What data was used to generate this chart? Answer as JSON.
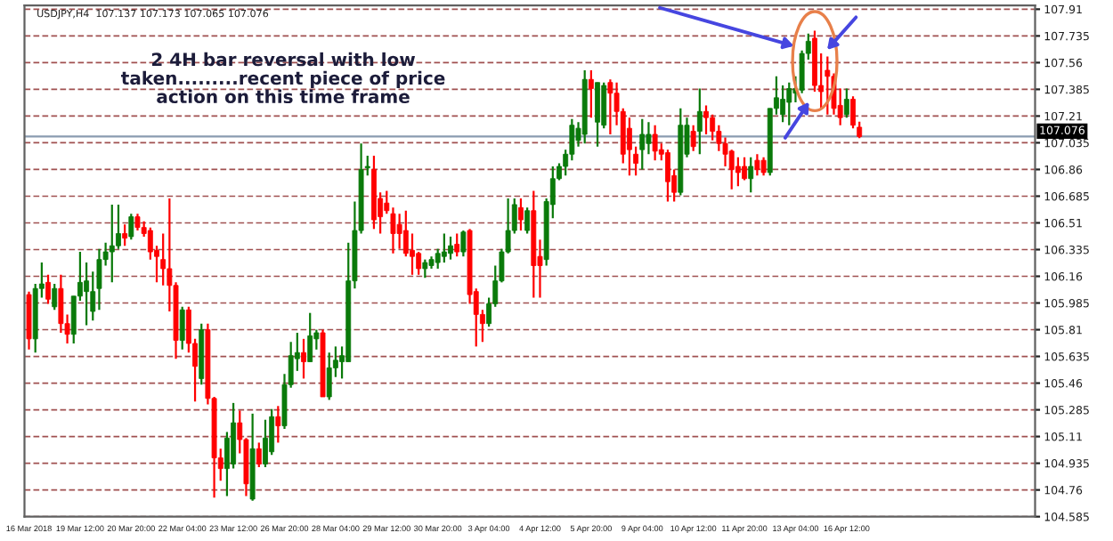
{
  "chart_data": {
    "type": "candlestick",
    "title": "USDJPY,H4  107.137 107.173 107.065 107.076",
    "annotations": [
      "2 4H bar reversal with low\ntaken.........recent piece of price\naction on this time frame"
    ],
    "categories": [
      "16 Mar 2018",
      null,
      null,
      null,
      null,
      null,
      null,
      null,
      "19 Mar 12:00",
      null,
      null,
      null,
      null,
      null,
      null,
      null,
      "20 Mar 20:00",
      null,
      null,
      null,
      null,
      null,
      null,
      null,
      "22 Mar 04:00",
      null,
      null,
      null,
      null,
      null,
      null,
      null,
      "23 Mar 12:00",
      null,
      null,
      null,
      null,
      null,
      null,
      null,
      "26 Mar 20:00",
      null,
      null,
      null,
      null,
      null,
      null,
      null,
      "28 Mar 04:00",
      null,
      null,
      null,
      null,
      null,
      null,
      null,
      "29 Mar 12:00",
      null,
      null,
      null,
      null,
      null,
      null,
      null,
      "30 Mar 20:00",
      null,
      null,
      null,
      null,
      null,
      null,
      null,
      "3 Apr 04:00",
      null,
      null,
      null,
      null,
      null,
      null,
      null,
      "4 Apr 12:00",
      null,
      null,
      null,
      null,
      null,
      null,
      null,
      "5 Apr 20:00",
      null,
      null,
      null,
      null,
      null,
      null,
      null,
      "9 Apr 04:00",
      null,
      null,
      null,
      null,
      null,
      null,
      null,
      "10 Apr 12:00",
      null,
      null,
      null,
      null,
      null,
      null,
      null,
      "11 Apr 20:00",
      null,
      null,
      null,
      null,
      null,
      null,
      null,
      "13 Apr 04:00",
      null,
      null,
      null,
      null,
      null,
      null,
      null,
      "16 Apr 12:00",
      null,
      null,
      null,
      null,
      null,
      null,
      null,
      null,
      null,
      null,
      null,
      null,
      null,
      null,
      null,
      null,
      null,
      null,
      null,
      null,
      null,
      null,
      null,
      null,
      null,
      null,
      null,
      null,
      null
    ],
    "ohlc": [
      [
        106.04,
        106.06,
        105.68,
        105.75
      ],
      [
        105.75,
        106.11,
        105.66,
        106.08
      ],
      [
        106.08,
        106.25,
        106.02,
        106.11
      ],
      [
        106.12,
        106.17,
        105.98,
        106.01
      ],
      [
        105.96,
        106.11,
        105.94,
        106.08
      ],
      [
        106.08,
        106.17,
        105.79,
        105.85
      ],
      [
        105.85,
        105.91,
        105.72,
        105.78
      ],
      [
        105.78,
        106.03,
        105.72,
        106.03
      ],
      [
        106.03,
        106.32,
        106.0,
        106.12
      ],
      [
        106.06,
        106.25,
        105.84,
        106.13
      ],
      [
        105.93,
        106.19,
        105.87,
        106.06
      ],
      [
        106.08,
        106.34,
        105.94,
        106.27
      ],
      [
        106.27,
        106.38,
        106.23,
        106.32
      ],
      [
        106.32,
        106.63,
        106.12,
        106.36
      ],
      [
        106.36,
        106.63,
        106.34,
        106.44
      ],
      [
        106.44,
        106.5,
        106.36,
        106.41
      ],
      [
        106.42,
        106.57,
        106.4,
        106.55
      ],
      [
        106.55,
        106.57,
        106.46,
        106.48
      ],
      [
        106.48,
        106.52,
        106.42,
        106.44
      ],
      [
        106.46,
        106.48,
        106.27,
        106.32
      ],
      [
        106.33,
        106.36,
        106.12,
        106.29
      ],
      [
        106.27,
        106.44,
        106.1,
        106.21
      ],
      [
        106.21,
        106.67,
        105.93,
        106.1
      ],
      [
        106.1,
        106.12,
        105.62,
        105.74
      ],
      [
        105.74,
        105.96,
        105.68,
        105.94
      ],
      [
        105.94,
        105.96,
        105.66,
        105.72
      ],
      [
        105.72,
        105.75,
        105.34,
        105.57
      ],
      [
        105.49,
        105.85,
        105.45,
        105.81
      ],
      [
        105.81,
        105.85,
        105.32,
        105.36
      ],
      [
        105.36,
        105.37,
        104.71,
        104.97
      ],
      [
        104.97,
        105.03,
        104.82,
        104.9
      ],
      [
        104.9,
        105.14,
        104.72,
        105.1
      ],
      [
        104.93,
        105.33,
        104.9,
        105.2
      ],
      [
        105.2,
        105.28,
        105.0,
        105.09
      ],
      [
        105.09,
        105.1,
        104.72,
        104.8
      ],
      [
        104.7,
        105.26,
        104.69,
        105.03
      ],
      [
        105.03,
        105.07,
        104.91,
        104.93
      ],
      [
        104.93,
        105.22,
        104.91,
        105.1
      ],
      [
        105.01,
        105.29,
        104.99,
        105.24
      ],
      [
        105.24,
        105.31,
        105.07,
        105.18
      ],
      [
        105.18,
        105.52,
        105.16,
        105.45
      ],
      [
        105.45,
        105.73,
        105.43,
        105.64
      ],
      [
        105.62,
        105.79,
        105.54,
        105.66
      ],
      [
        105.66,
        105.75,
        105.49,
        105.6
      ],
      [
        105.6,
        105.92,
        105.6,
        105.77
      ],
      [
        105.75,
        105.81,
        105.68,
        105.79
      ],
      [
        105.79,
        105.81,
        105.37,
        105.37
      ],
      [
        105.37,
        105.66,
        105.35,
        105.56
      ],
      [
        105.56,
        105.7,
        105.5,
        105.61
      ],
      [
        105.6,
        105.7,
        105.49,
        105.64
      ],
      [
        105.6,
        106.38,
        105.6,
        106.13
      ],
      [
        106.13,
        106.65,
        106.08,
        106.46
      ],
      [
        106.46,
        107.03,
        106.44,
        106.86
      ],
      [
        106.87,
        106.95,
        106.82,
        106.88
      ],
      [
        106.86,
        106.95,
        106.47,
        106.53
      ],
      [
        106.67,
        106.71,
        106.44,
        106.55
      ],
      [
        106.64,
        106.72,
        106.57,
        106.59
      ],
      [
        106.57,
        106.61,
        106.31,
        106.44
      ],
      [
        106.5,
        106.57,
        106.34,
        106.44
      ],
      [
        106.46,
        106.59,
        106.29,
        106.31
      ],
      [
        106.33,
        106.44,
        106.17,
        106.29
      ],
      [
        106.31,
        106.32,
        106.17,
        106.21
      ],
      [
        106.21,
        106.27,
        106.15,
        106.25
      ],
      [
        106.23,
        106.29,
        106.21,
        106.27
      ],
      [
        106.25,
        106.34,
        106.21,
        106.31
      ],
      [
        106.29,
        106.44,
        106.25,
        106.32
      ],
      [
        106.31,
        106.42,
        106.27,
        106.36
      ],
      [
        106.37,
        106.44,
        106.29,
        106.32
      ],
      [
        106.32,
        106.46,
        106.29,
        106.45
      ],
      [
        106.46,
        106.47,
        105.98,
        106.04
      ],
      [
        106.06,
        106.08,
        105.7,
        105.91
      ],
      [
        105.91,
        105.94,
        105.73,
        105.85
      ],
      [
        105.85,
        106.02,
        105.83,
        105.98
      ],
      [
        105.98,
        106.23,
        105.96,
        106.13
      ],
      [
        106.13,
        106.34,
        106.12,
        106.32
      ],
      [
        106.32,
        106.67,
        106.31,
        106.46
      ],
      [
        106.46,
        106.67,
        106.44,
        106.63
      ],
      [
        106.61,
        106.67,
        106.46,
        106.53
      ],
      [
        106.46,
        106.61,
        106.44,
        106.59
      ],
      [
        106.59,
        106.72,
        106.02,
        106.23
      ],
      [
        106.29,
        106.4,
        106.02,
        106.23
      ],
      [
        106.27,
        106.67,
        106.23,
        106.65
      ],
      [
        106.63,
        106.88,
        106.54,
        106.8
      ],
      [
        106.8,
        106.9,
        106.79,
        106.88
      ],
      [
        106.88,
        106.99,
        106.82,
        106.96
      ],
      [
        106.96,
        107.19,
        106.92,
        107.15
      ],
      [
        107.05,
        107.17,
        107.01,
        107.13
      ],
      [
        107.09,
        107.51,
        107.03,
        107.45
      ],
      [
        107.45,
        107.51,
        107.2,
        107.39
      ],
      [
        107.17,
        107.43,
        107.01,
        107.43
      ],
      [
        107.15,
        107.43,
        107.13,
        107.41
      ],
      [
        107.43,
        107.45,
        107.09,
        107.36
      ],
      [
        107.36,
        107.43,
        107.15,
        107.24
      ],
      [
        107.24,
        107.26,
        106.9,
        106.96
      ],
      [
        107.13,
        107.2,
        106.82,
        106.99
      ],
      [
        106.96,
        107.01,
        106.82,
        106.9
      ],
      [
        106.99,
        107.19,
        106.86,
        107.09
      ],
      [
        107.03,
        107.17,
        106.96,
        107.09
      ],
      [
        107.09,
        107.15,
        106.92,
        106.98
      ],
      [
        106.99,
        107.03,
        106.92,
        106.96
      ],
      [
        106.97,
        106.99,
        106.65,
        106.78
      ],
      [
        106.82,
        106.86,
        106.65,
        106.71
      ],
      [
        106.71,
        107.26,
        106.69,
        107.15
      ],
      [
        106.96,
        107.2,
        106.94,
        107.15
      ],
      [
        107.11,
        107.15,
        106.98,
        107.01
      ],
      [
        107.11,
        107.39,
        106.96,
        107.24
      ],
      [
        107.24,
        107.28,
        107.09,
        107.2
      ],
      [
        107.2,
        107.22,
        107.05,
        107.11
      ],
      [
        107.11,
        107.15,
        106.98,
        107.03
      ],
      [
        107.03,
        107.07,
        106.88,
        106.96
      ],
      [
        106.98,
        106.99,
        106.73,
        106.86
      ],
      [
        106.88,
        106.94,
        106.75,
        106.84
      ],
      [
        106.88,
        106.94,
        106.79,
        106.8
      ],
      [
        106.8,
        106.94,
        106.71,
        106.88
      ],
      [
        106.92,
        106.96,
        106.82,
        106.86
      ],
      [
        106.92,
        106.94,
        106.82,
        106.84
      ],
      [
        106.84,
        107.26,
        106.82,
        107.26
      ],
      [
        107.26,
        107.47,
        107.22,
        107.33
      ],
      [
        107.22,
        107.41,
        107.17,
        107.32
      ],
      [
        107.3,
        107.43,
        107.15,
        107.39
      ],
      [
        107.36,
        107.47,
        107.3,
        107.39
      ],
      [
        107.38,
        107.64,
        107.36,
        107.62
      ],
      [
        107.62,
        107.75,
        107.58,
        107.7
      ],
      [
        107.72,
        107.77,
        107.37,
        107.41
      ],
      [
        107.41,
        107.62,
        107.26,
        107.37
      ],
      [
        107.51,
        107.6,
        107.22,
        107.47
      ],
      [
        107.47,
        107.49,
        107.22,
        107.26
      ],
      [
        107.28,
        107.39,
        107.15,
        107.2
      ],
      [
        107.22,
        107.39,
        107.2,
        107.32
      ],
      [
        107.32,
        107.34,
        107.13,
        107.15
      ],
      [
        107.137,
        107.173,
        107.065,
        107.076
      ],
      null,
      null,
      null,
      null,
      null,
      null,
      null,
      null,
      null,
      null,
      null,
      null,
      null,
      null,
      null,
      null,
      null,
      null,
      null,
      null,
      null,
      null,
      null,
      null,
      null,
      null,
      null
    ],
    "ylim": [
      104.585,
      107.935
    ],
    "yticks": [
      104.585,
      104.76,
      104.935,
      105.11,
      105.285,
      105.46,
      105.635,
      105.81,
      105.985,
      106.16,
      106.335,
      106.51,
      106.685,
      106.86,
      107.035,
      107.21,
      107.385,
      107.56,
      107.735,
      107.91
    ],
    "ref_lines": [
      {
        "axis": "y",
        "value": 107.076,
        "label": "107.076",
        "color": "#8a9bb0"
      }
    ],
    "grid": "y"
  }
}
